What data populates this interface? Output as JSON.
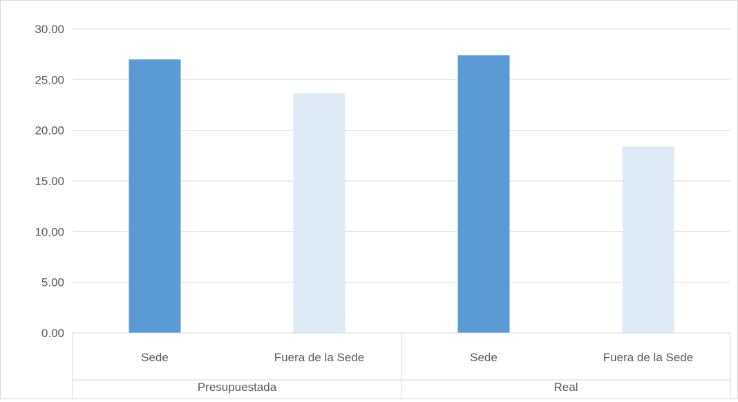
{
  "chart_data": {
    "type": "bar",
    "groups": [
      {
        "label": "Presupuestada",
        "categories": [
          "Sede",
          "Fuera de la Sede"
        ]
      },
      {
        "label": "Real",
        "categories": [
          "Sede",
          "Fuera de la Sede"
        ]
      }
    ],
    "categories": [
      "Sede",
      "Fuera de la Sede",
      "Sede",
      "Fuera de la Sede"
    ],
    "values": [
      27.0,
      23.65,
      27.4,
      18.4
    ],
    "bar_colors": [
      "#5b9bd5",
      "#deeaf6",
      "#5b9bd5",
      "#deeaf6"
    ],
    "ylim": [
      0,
      30
    ],
    "yticks": [
      "0.00",
      "5.00",
      "10.00",
      "15.00",
      "20.00",
      "25.00",
      "30.00"
    ],
    "title": "",
    "xlabel": "",
    "ylabel": "",
    "grid": true,
    "legend": "none"
  }
}
